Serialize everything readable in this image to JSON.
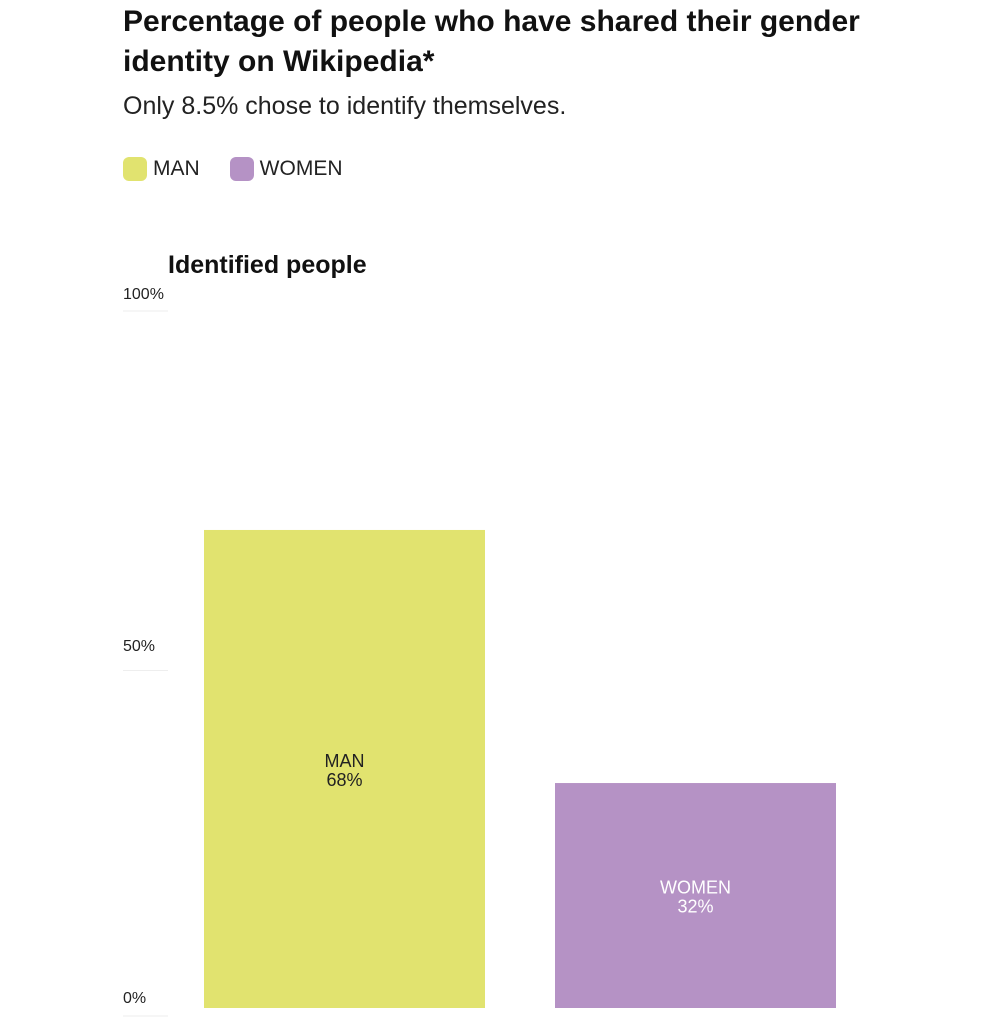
{
  "header": {
    "title": "Percentage of people who have shared their gender identity on Wikipedia*",
    "subtitle": "Only 8.5% chose to identify themselves."
  },
  "legend": {
    "items": [
      {
        "label": "MAN",
        "color": "#e1e36f"
      },
      {
        "label": "WOMEN",
        "color": "#b592c5"
      }
    ]
  },
  "chart_data": {
    "type": "bar",
    "title": "Identified people",
    "stacked": true,
    "categories": [
      "MAN",
      "WOMEN"
    ],
    "series": [
      {
        "name": "MAN",
        "values": [
          68,
          0
        ],
        "color": "#e1e36f",
        "label": "MAN",
        "value_label": "68%"
      },
      {
        "name": "WOMEN",
        "values": [
          0,
          32
        ],
        "color": "#b592c5",
        "label": "WOMEN",
        "value_label": "32%"
      }
    ],
    "ylim": [
      0,
      100
    ],
    "yticks": [
      {
        "value": 0,
        "label": "0%"
      },
      {
        "value": 50,
        "label": "50%"
      },
      {
        "value": 100,
        "label": "100%"
      }
    ],
    "grid": false,
    "legend": "top-left"
  }
}
